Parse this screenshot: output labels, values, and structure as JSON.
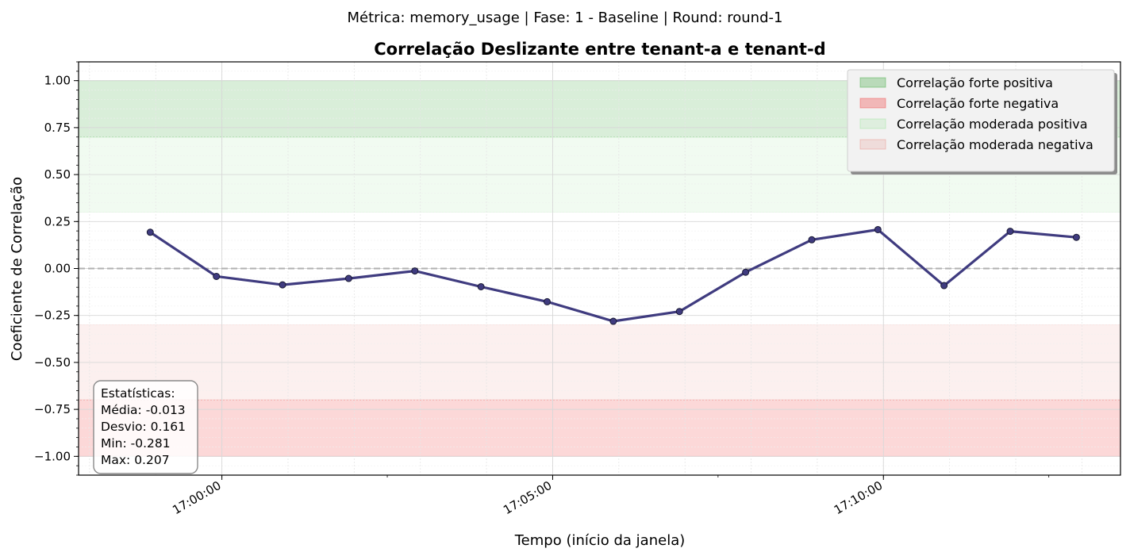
{
  "suptitle": "Métrica: memory_usage | Fase: 1 - Baseline | Round: round-1",
  "chart_data": {
    "type": "line",
    "title": "Correlação Deslizante entre tenant-a e tenant-d",
    "xlabel": "Tempo (início da janela)",
    "ylabel": "Coeficiente de Correlação",
    "x": [
      "16:58:55",
      "16:59:55",
      "17:00:55",
      "17:01:55",
      "17:02:55",
      "17:03:55",
      "17:04:55",
      "17:05:55",
      "17:06:55",
      "17:07:55",
      "17:08:55",
      "17:09:55",
      "17:10:55",
      "17:11:55",
      "17:12:55"
    ],
    "series": [
      {
        "values": [
          0.193,
          -0.042,
          -0.087,
          -0.053,
          -0.013,
          -0.097,
          -0.177,
          -0.281,
          -0.229,
          -0.02,
          0.153,
          0.207,
          -0.091,
          0.198,
          0.166
        ]
      }
    ],
    "xlim": [
      "16:57:50",
      "17:13:35"
    ],
    "ylim": [
      -1.1,
      1.1
    ],
    "xticks": [
      "17:00:00",
      "17:05:00",
      "17:10:00"
    ],
    "yticks": [
      1.0,
      0.75,
      0.5,
      0.25,
      0.0,
      -0.25,
      -0.5,
      -0.75,
      -1.0
    ],
    "ytick_labels": [
      "1.00",
      "0.75",
      "0.50",
      "0.25",
      "0.00",
      "−0.25",
      "−0.50",
      "−0.75",
      "−1.00"
    ],
    "reference_line": 0,
    "bands": [
      {
        "name": "Correlação forte positiva",
        "from": 0.7,
        "to": 1.0,
        "color": "#2ca02c",
        "opacity": 0.18
      },
      {
        "name": "Correlação forte negativa",
        "from": -1.0,
        "to": -0.7,
        "color": "#ef3b3b",
        "opacity": 0.2
      },
      {
        "name": "Correlação moderada positiva",
        "from": 0.3,
        "to": 0.7,
        "color": "#8fe08f",
        "opacity": 0.12
      },
      {
        "name": "Correlação moderada negativa",
        "from": -0.7,
        "to": -0.3,
        "color": "#e6837a",
        "opacity": 0.12
      }
    ],
    "legend_position": "top-right",
    "grid": true,
    "line_color": "#3f3b7f",
    "marker_fill": "#3f3b7f",
    "ref_line_color": "#b0b0b0",
    "stats_box": {
      "lines": [
        "Estatísticas:",
        "Média: -0.013",
        "Desvio: 0.161",
        "Min: -0.281",
        "Max: 0.207"
      ]
    }
  }
}
